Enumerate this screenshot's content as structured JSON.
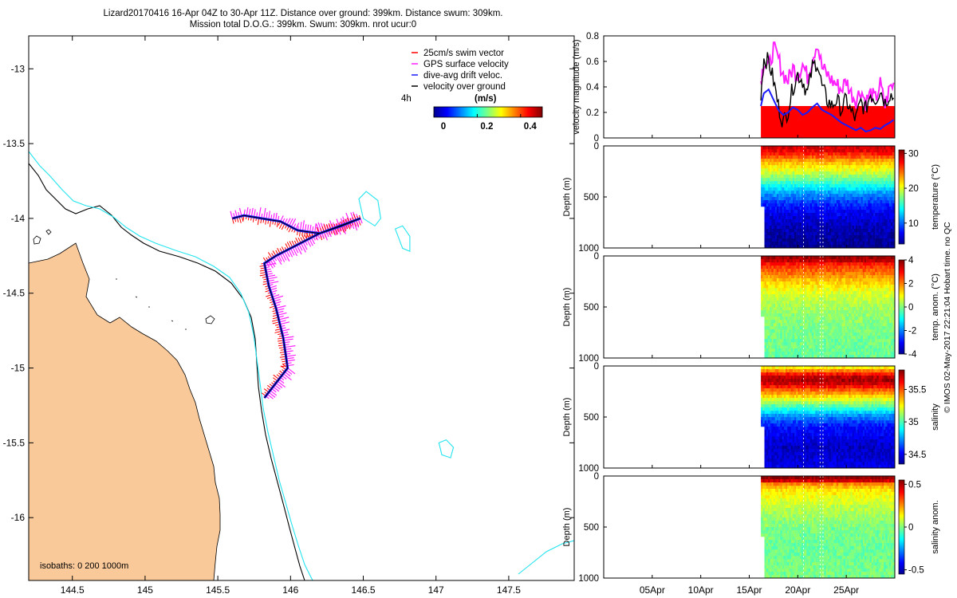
{
  "title": {
    "line1": "Lizard20170416 16-Apr 04Z to 30-Apr 11Z. Distance over ground: 399km. Distance swum: 309km.",
    "line2": "Mission total D.O.G.: 399km. Swum: 309km. nrot ucur:0"
  },
  "colors": {
    "land": "#f9c99a",
    "isobath200": "#000000",
    "isobath1000": "#22e4f0",
    "swim": "#ff0000",
    "gps": "#ff22ff",
    "drift": "#1a1aff",
    "ground": "#000000",
    "speed_fill": "#ff0000"
  },
  "chart_data": [
    {
      "id": "map",
      "type": "map",
      "xlim": [
        144.2,
        147.95
      ],
      "ylim": [
        -16.42,
        -12.78
      ],
      "xticks": [
        "144.5",
        "145",
        "145.5",
        "146",
        "146.5",
        "147",
        "147.5"
      ],
      "xtick_values": [
        144.5,
        145,
        145.5,
        146,
        146.5,
        147,
        147.5
      ],
      "yticks": [
        "-13",
        "-13.5",
        "-14",
        "-14.5",
        "-15",
        "-15.5",
        "-16"
      ],
      "ytick_values": [
        -13,
        -13.5,
        -14,
        -14.5,
        -15,
        -15.5,
        -16
      ],
      "legend": [
        "25cm/s swim vector",
        "GPS surface velocity",
        "dive-avg drift veloc.",
        "velocity over ground"
      ],
      "scale_label": "4h",
      "colorbar_label": "(m/s)",
      "colorbar_ticks": [
        "0",
        "0.2",
        "0.4"
      ],
      "colorbar_range": [
        0,
        0.5
      ],
      "isobath_note": "isobaths: 0   200  1000m",
      "track": [
        [
          145.6,
          -14.0
        ],
        [
          145.68,
          -13.98
        ],
        [
          145.8,
          -14.0
        ],
        [
          145.93,
          -14.02
        ],
        [
          146.05,
          -14.08
        ],
        [
          146.2,
          -14.1
        ],
        [
          146.35,
          -14.05
        ],
        [
          146.48,
          -14.0
        ],
        [
          146.2,
          -14.1
        ],
        [
          146.0,
          -14.2
        ],
        [
          145.9,
          -14.25
        ],
        [
          145.82,
          -14.3
        ],
        [
          145.85,
          -14.45
        ],
        [
          145.9,
          -14.6
        ],
        [
          145.95,
          -14.8
        ],
        [
          145.98,
          -15.0
        ],
        [
          145.9,
          -15.1
        ],
        [
          145.82,
          -15.2
        ]
      ],
      "reefs": [
        [
          [
            146.47,
            -13.87
          ],
          [
            146.52,
            -13.82
          ],
          [
            146.6,
            -13.88
          ],
          [
            146.62,
            -14.0
          ],
          [
            146.58,
            -14.05
          ],
          [
            146.5,
            -14.0
          ]
        ],
        [
          [
            146.72,
            -14.07
          ],
          [
            146.77,
            -14.05
          ],
          [
            146.82,
            -14.12
          ],
          [
            146.82,
            -14.22
          ],
          [
            146.77,
            -14.2
          ]
        ],
        [
          [
            147.02,
            -15.5
          ],
          [
            147.07,
            -15.48
          ],
          [
            147.12,
            -15.53
          ],
          [
            147.1,
            -15.6
          ],
          [
            147.04,
            -15.58
          ]
        ]
      ]
    },
    {
      "id": "velocity",
      "type": "area",
      "ylabel": "velocity magnitude (m/s)",
      "ylim": [
        0,
        0.8
      ],
      "yticks": [
        "0",
        "0.2",
        "0.4",
        "0.6",
        "0.8"
      ],
      "ytick_values": [
        0,
        0.2,
        0.4,
        0.6,
        0.8
      ],
      "xlim": [
        0,
        30
      ],
      "swim_speed": 0.25,
      "start_day": 16.2,
      "series": [
        {
          "name": "GPS surface velocity",
          "x": [
            16.2,
            16.5,
            17,
            17.5,
            18,
            18.5,
            19,
            19.5,
            20,
            20.5,
            21,
            21.5,
            22,
            22.5,
            23,
            23.5,
            24,
            24.5,
            25,
            25.5,
            26,
            26.5,
            27,
            27.5,
            28,
            28.5,
            29,
            29.5,
            30
          ],
          "values": [
            0.45,
            0.6,
            0.55,
            0.7,
            0.62,
            0.5,
            0.45,
            0.55,
            0.5,
            0.58,
            0.48,
            0.62,
            0.75,
            0.55,
            0.5,
            0.45,
            0.42,
            0.38,
            0.45,
            0.35,
            0.3,
            0.38,
            0.28,
            0.35,
            0.3,
            0.42,
            0.25,
            0.4,
            0.42
          ]
        },
        {
          "name": "velocity over ground",
          "x": [
            16.2,
            16.5,
            17,
            17.5,
            18,
            18.5,
            19,
            19.5,
            20,
            20.5,
            21,
            21.5,
            22,
            22.5,
            23,
            23.5,
            24,
            24.5,
            25,
            25.5,
            26,
            26.5,
            27,
            27.5,
            28,
            28.5,
            29,
            29.5,
            30
          ],
          "values": [
            0.35,
            0.62,
            0.6,
            0.45,
            0.25,
            0.12,
            0.22,
            0.4,
            0.5,
            0.45,
            0.35,
            0.55,
            0.6,
            0.4,
            0.3,
            0.25,
            0.3,
            0.22,
            0.3,
            0.2,
            0.15,
            0.28,
            0.22,
            0.35,
            0.3,
            0.38,
            0.28,
            0.35,
            0.3
          ]
        },
        {
          "name": "dive-avg drift veloc.",
          "x": [
            16.2,
            16.5,
            17,
            17.5,
            18,
            18.5,
            19,
            19.5,
            20,
            20.5,
            21,
            21.5,
            22,
            22.5,
            23,
            23.5,
            24,
            24.5,
            25,
            25.5,
            26,
            26.5,
            27,
            27.5,
            28,
            28.5,
            29,
            29.5,
            30
          ],
          "values": [
            0.25,
            0.35,
            0.38,
            0.3,
            0.22,
            0.18,
            0.2,
            0.24,
            0.22,
            0.18,
            0.2,
            0.24,
            0.27,
            0.22,
            0.2,
            0.18,
            0.15,
            0.12,
            0.1,
            0.08,
            0.06,
            0.08,
            0.05,
            0.06,
            0.08,
            0.07,
            0.1,
            0.12,
            0.15
          ]
        }
      ]
    },
    {
      "id": "temperature",
      "type": "heatmap",
      "ylabel": "Depth (m)",
      "yticks": [
        "0",
        "500",
        "1000"
      ],
      "ytick_values": [
        0,
        500,
        1000
      ],
      "ylim": [
        0,
        1000
      ],
      "colorbar_label": "temperature (°C)",
      "colorbar_ticks": [
        "30",
        "20",
        "10"
      ],
      "colorbar_tick_values": [
        30,
        20,
        10
      ],
      "clim": [
        4,
        31
      ],
      "profile_depth": [
        0,
        50,
        100,
        150,
        250,
        350,
        450,
        550,
        650,
        800,
        1000
      ],
      "profile_value": [
        29,
        28,
        26,
        23,
        20,
        16,
        12,
        9,
        7,
        5.5,
        4.5
      ]
    },
    {
      "id": "temp_anom",
      "type": "heatmap",
      "ylabel": "Depth (m)",
      "yticks": [
        "0",
        "500",
        "1000"
      ],
      "ytick_values": [
        0,
        500,
        1000
      ],
      "ylim": [
        0,
        1000
      ],
      "colorbar_label": "temp. anom. (°C)",
      "colorbar_ticks": [
        "4",
        "2",
        "0",
        "-2",
        "-4"
      ],
      "colorbar_tick_values": [
        4,
        2,
        0,
        -2,
        -4
      ],
      "clim": [
        -4,
        4
      ],
      "profile_depth": [
        0,
        30,
        60,
        100,
        150,
        200,
        250,
        350,
        500,
        700,
        1000
      ],
      "profile_value": [
        3.5,
        4,
        3,
        2.6,
        2.2,
        1.8,
        1.4,
        0.8,
        0.3,
        0,
        -0.2
      ]
    },
    {
      "id": "salinity",
      "type": "heatmap",
      "ylabel": "Depth (m)",
      "yticks": [
        "0",
        "500",
        "1000"
      ],
      "ytick_values": [
        0,
        500,
        1000
      ],
      "ylim": [
        0,
        1000
      ],
      "colorbar_label": "salinity",
      "colorbar_ticks": [
        "35.5",
        "35",
        "34.5"
      ],
      "colorbar_tick_values": [
        35.5,
        35,
        34.5
      ],
      "clim": [
        34.35,
        35.8
      ],
      "profile_depth": [
        0,
        50,
        100,
        150,
        200,
        300,
        400,
        500,
        600,
        800,
        1000
      ],
      "profile_value": [
        35.2,
        35.45,
        35.7,
        35.75,
        35.6,
        35.3,
        35.0,
        34.7,
        34.55,
        34.45,
        34.5
      ]
    },
    {
      "id": "sal_anom",
      "type": "heatmap",
      "ylabel": "Depth (m)",
      "yticks": [
        "0",
        "500",
        "1000"
      ],
      "ytick_values": [
        0,
        500,
        1000
      ],
      "ylim": [
        0,
        1000
      ],
      "colorbar_label": "salinity anom.",
      "colorbar_ticks": [
        "0.5",
        "0",
        "-0.5"
      ],
      "colorbar_tick_values": [
        0.5,
        0,
        -0.5
      ],
      "clim": [
        -0.55,
        0.55
      ],
      "profile_depth": [
        0,
        20,
        50,
        80,
        150,
        250,
        350,
        500,
        700,
        1000
      ],
      "profile_value": [
        0.5,
        0.55,
        0.45,
        0.25,
        0.15,
        0.1,
        0.05,
        0,
        -0.02,
        0
      ]
    }
  ],
  "time_axis": {
    "ticks": [
      "05Apr",
      "10Apr",
      "15Apr",
      "20Apr",
      "25Apr"
    ],
    "tick_values": [
      5,
      10,
      15,
      20,
      25
    ],
    "xlim": [
      0,
      30
    ]
  },
  "footer": "© IMOS 02-May-2017 22:21:04 Hobart time. no QC"
}
